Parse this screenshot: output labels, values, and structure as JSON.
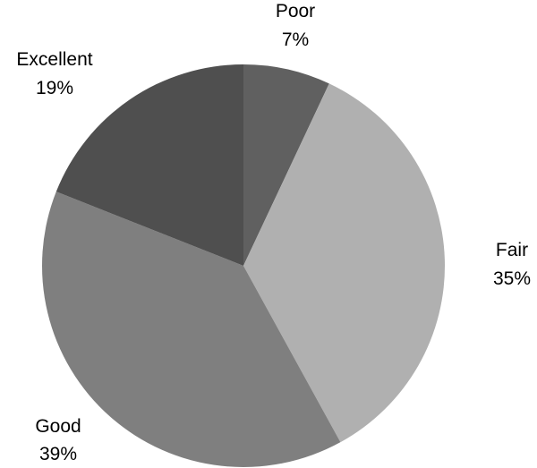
{
  "chart_data": {
    "type": "pie",
    "start_angle_deg": 0,
    "direction": "clockwise",
    "legend": "none",
    "slices": [
      {
        "label": "Poor",
        "value": 7,
        "value_label": "7%",
        "color": "#606060"
      },
      {
        "label": "Fair",
        "value": 35,
        "value_label": "35%",
        "color": "#b0b0b0"
      },
      {
        "label": "Good",
        "value": 39,
        "value_label": "39%",
        "color": "#7f7f7f"
      },
      {
        "label": "Excellent",
        "value": 19,
        "value_label": "19%",
        "color": "#4f4f4f"
      }
    ]
  }
}
